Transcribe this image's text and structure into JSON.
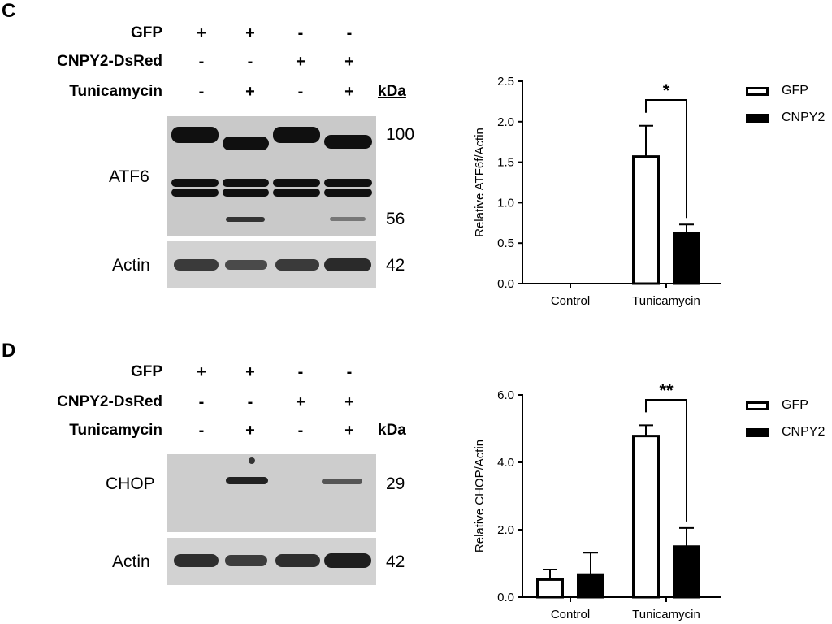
{
  "panels": [
    {
      "letter": "C",
      "conditions": [
        {
          "label": "GFP",
          "signs": [
            "+",
            "+",
            "-",
            "-"
          ]
        },
        {
          "label": "CNPY2-DsRed",
          "signs": [
            "-",
            "-",
            "+",
            "+"
          ]
        },
        {
          "label": "Tunicamycin",
          "signs": [
            "-",
            "+",
            "-",
            "+"
          ]
        }
      ],
      "kda_label": "kDa",
      "blots": [
        {
          "label": "ATF6",
          "markers": [
            "100",
            "56"
          ]
        },
        {
          "label": "Actin",
          "markers": [
            "42"
          ]
        }
      ]
    },
    {
      "letter": "D",
      "conditions": [
        {
          "label": "GFP",
          "signs": [
            "+",
            "+",
            "-",
            "-"
          ]
        },
        {
          "label": "CNPY2-DsRed",
          "signs": [
            "-",
            "-",
            "+",
            "+"
          ]
        },
        {
          "label": "Tunicamycin",
          "signs": [
            "-",
            "+",
            "-",
            "+"
          ]
        }
      ],
      "kda_label": "kDa",
      "blots": [
        {
          "label": "CHOP",
          "markers": [
            "29"
          ]
        },
        {
          "label": "Actin",
          "markers": [
            "42"
          ]
        }
      ]
    }
  ],
  "chart_data": [
    {
      "type": "bar",
      "categories": [
        "Control",
        "Tunicamycin"
      ],
      "series": [
        {
          "name": "GFP",
          "values": [
            0,
            1.57
          ],
          "errors": [
            0,
            0.38
          ],
          "fill": "#ffffff"
        },
        {
          "name": "CNPY2",
          "values": [
            0,
            0.62
          ],
          "errors": [
            0,
            0.11
          ],
          "fill": "#000000"
        }
      ],
      "ylabel": "Relative ATF6f/Actin",
      "ylim": [
        0,
        2.5
      ],
      "yticks": [
        "0.0",
        "0.5",
        "1.0",
        "1.5",
        "2.0",
        "2.5"
      ],
      "significance": {
        "category": "Tunicamycin",
        "label": "*"
      },
      "legend": "top-right"
    },
    {
      "type": "bar",
      "categories": [
        "Control",
        "Tunicamycin"
      ],
      "series": [
        {
          "name": "GFP",
          "values": [
            0.52,
            4.78
          ],
          "errors": [
            0.3,
            0.32
          ],
          "fill": "#ffffff"
        },
        {
          "name": "CNPY2",
          "values": [
            0.67,
            1.5
          ],
          "errors": [
            0.65,
            0.55
          ],
          "fill": "#000000"
        }
      ],
      "ylabel": "Relative CHOP/Actin",
      "ylim": [
        0,
        6
      ],
      "yticks": [
        "0.0",
        "2.0",
        "4.0",
        "6.0"
      ],
      "significance": {
        "category": "Tunicamycin",
        "label": "**"
      },
      "legend": "top-right"
    }
  ]
}
